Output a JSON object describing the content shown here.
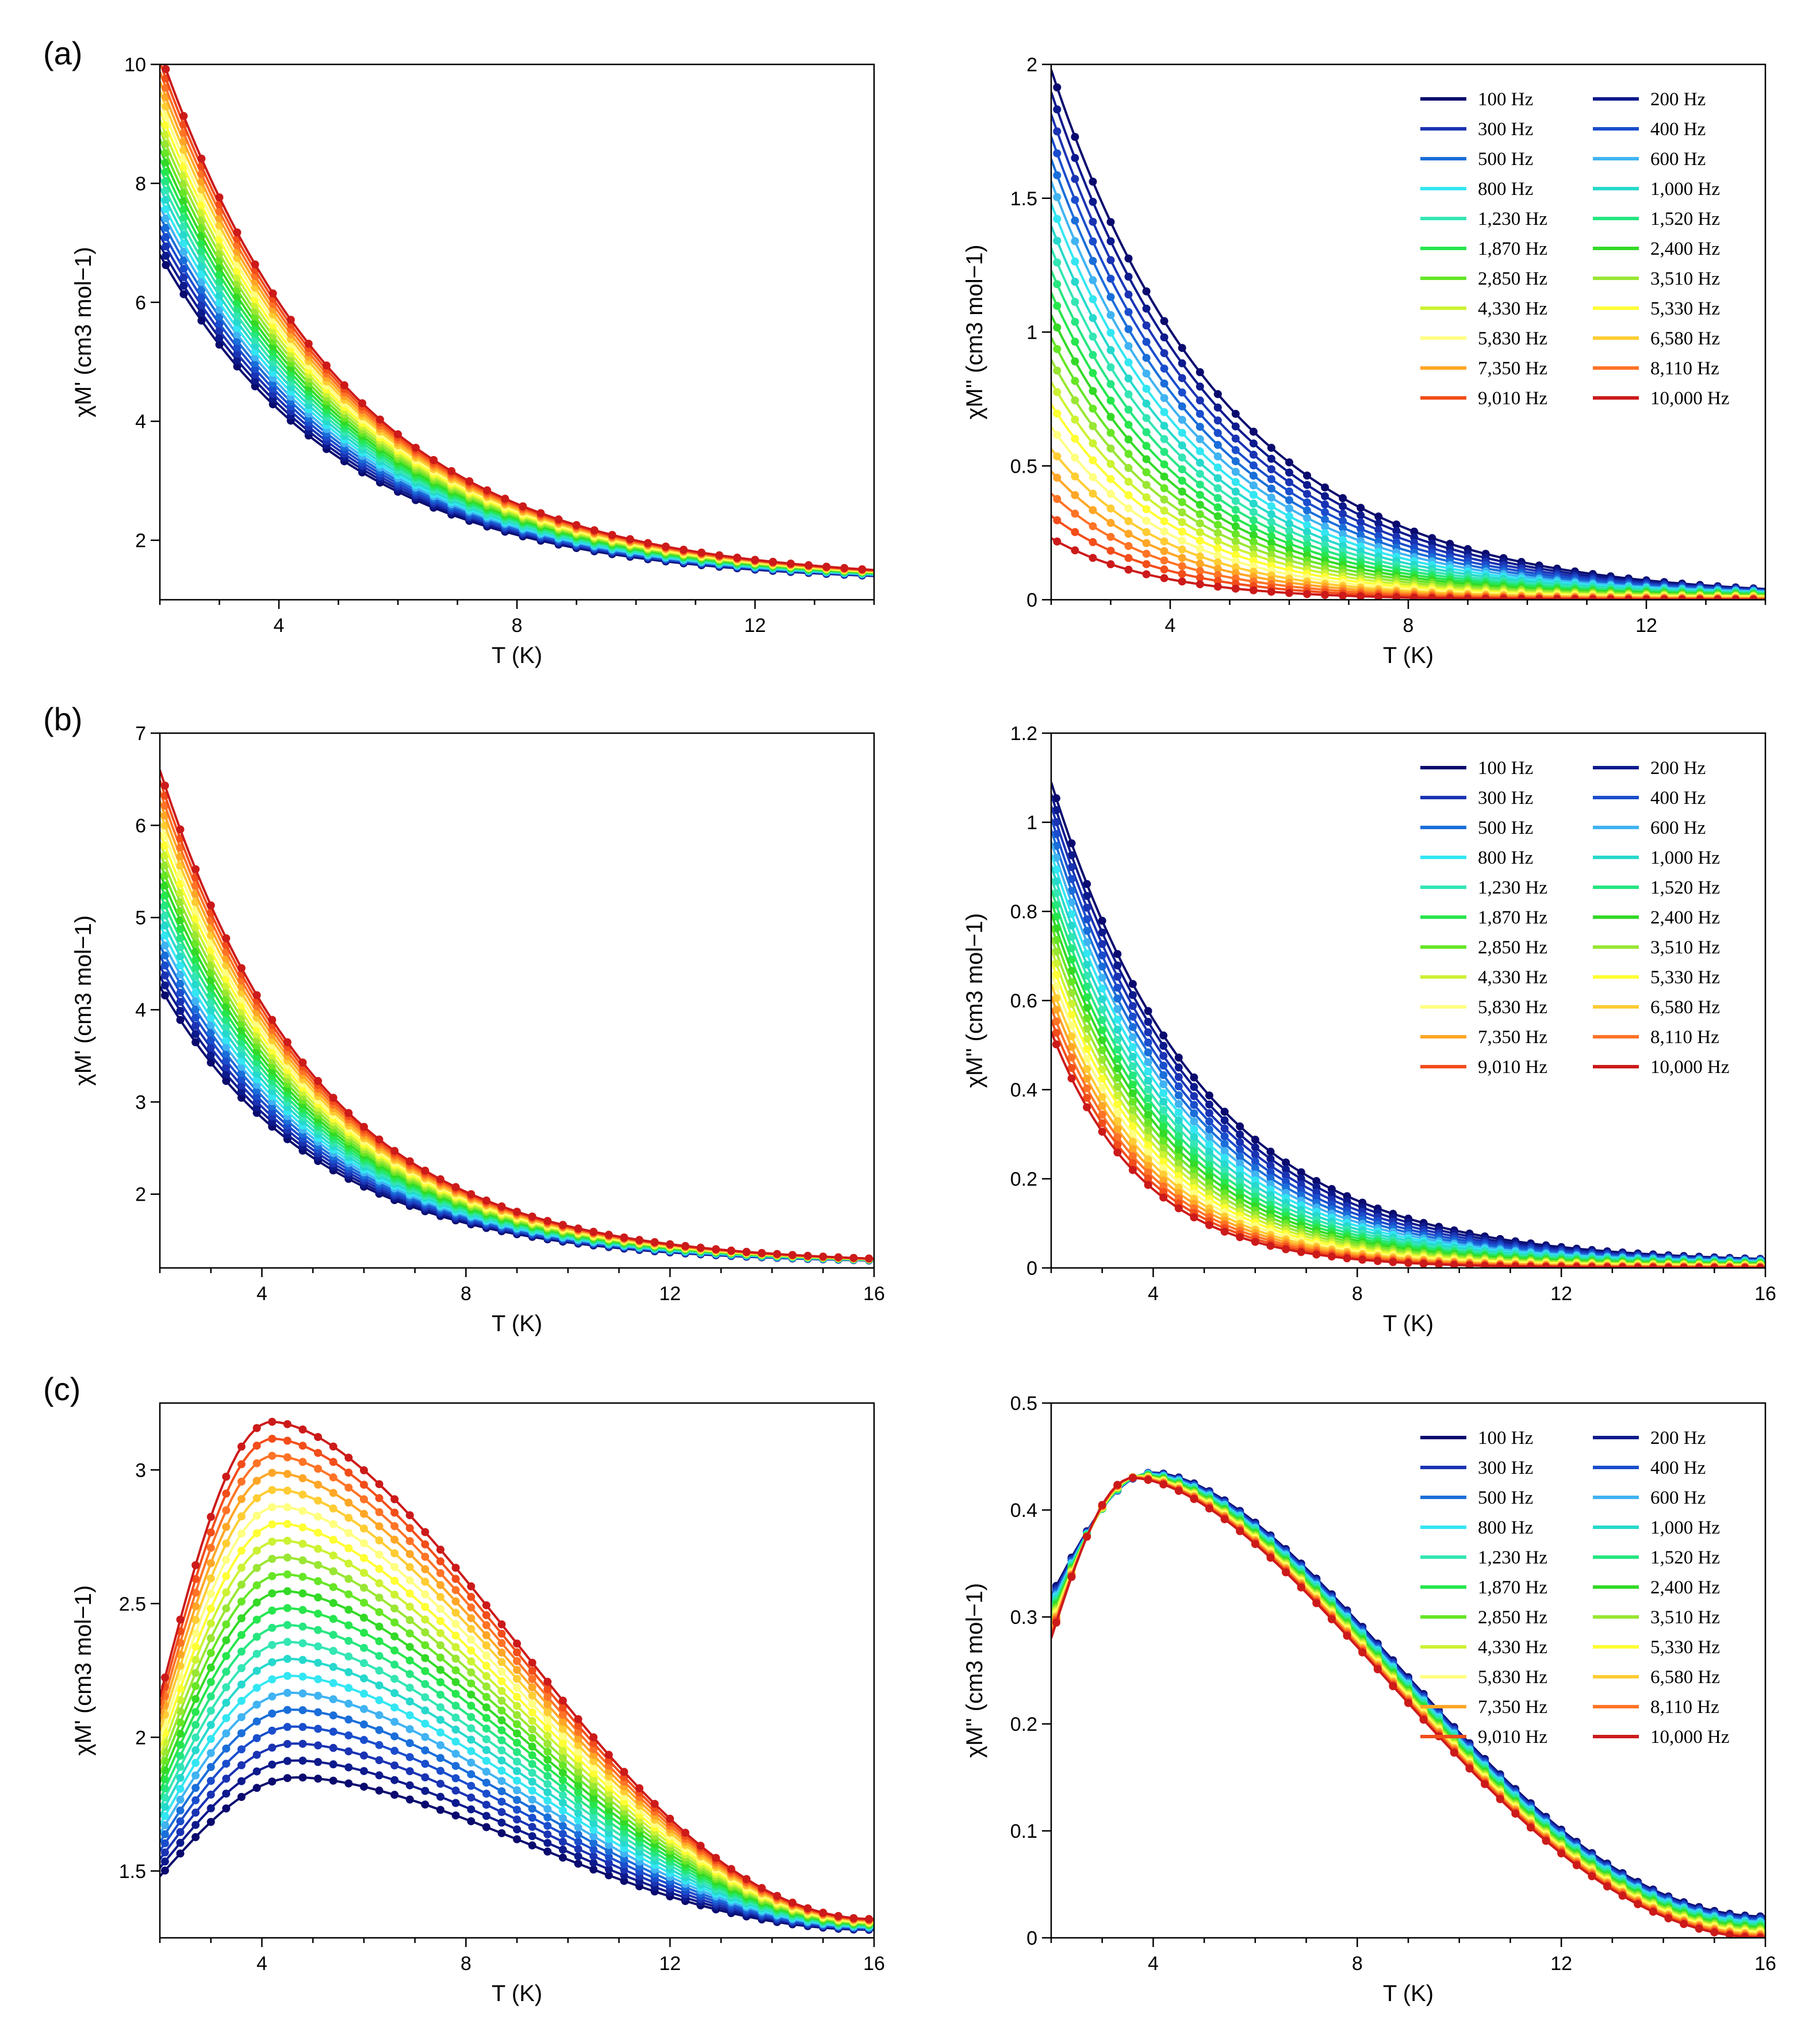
{
  "panel_labels": [
    "(a)",
    "(b)",
    "(c)"
  ],
  "frequencies": [
    "100 Hz",
    "200 Hz",
    "300 Hz",
    "400 Hz",
    "500 Hz",
    "600 Hz",
    "800 Hz",
    "1,000 Hz",
    "1,230 Hz",
    "1,520 Hz",
    "1,870 Hz",
    "2,400 Hz",
    "2,850 Hz",
    "3,510 Hz",
    "4,330 Hz",
    "5,330 Hz",
    "5,830 Hz",
    "6,580 Hz",
    "7,350 Hz",
    "8,110 Hz",
    "9,010 Hz",
    "10,000 Hz"
  ],
  "colors": [
    "#0a0a6e",
    "#0d1a8c",
    "#1a33b3",
    "#1a4dcc",
    "#1a6ed9",
    "#40b3f2",
    "#33e6f2",
    "#26d9cc",
    "#33e6b3",
    "#26e680",
    "#26e64d",
    "#33d926",
    "#66e626",
    "#99e633",
    "#ccf233",
    "#ffff33",
    "#ffff80",
    "#ffcc33",
    "#ffa626",
    "#ff7326",
    "#f24d1a",
    "#cc1a1a"
  ],
  "chart_data": [
    {
      "id": "a-real",
      "type": "line",
      "panel": "(a)",
      "xlabel": "T (K)",
      "ylabel": "χM' (cm3 mol−1)",
      "xlim": [
        2,
        14
      ],
      "ylim": [
        1,
        10
      ],
      "xticks": [
        "4",
        "8",
        "12"
      ],
      "yticks": [
        "2",
        "4",
        "6",
        "8",
        "10"
      ],
      "note": "Approximate: curves decay from ~6.8 (100 Hz) / ~10.2 (10,000 Hz) at 2 K to ~1.4-1.5 at 14 K",
      "series_low": {
        "name": "100 Hz",
        "T2": 6.8,
        "T14": 1.4
      },
      "series_high": {
        "name": "10,000 Hz",
        "T2": 10.2,
        "T14": 1.5
      }
    },
    {
      "id": "a-imag",
      "type": "line",
      "panel": "(a)",
      "xlabel": "T (K)",
      "ylabel": "χM'' (cm3 mol−1)",
      "xlim": [
        2,
        14
      ],
      "ylim": [
        0,
        2
      ],
      "xticks": [
        "4",
        "8",
        "12"
      ],
      "yticks": [
        "0",
        "0.5",
        "1",
        "1.5",
        "2"
      ],
      "series_low": {
        "name": "100 Hz",
        "T2": 1.98,
        "T14": 0.04
      },
      "series_high": {
        "name": "10,000 Hz",
        "T2": 0.23,
        "T14": 0.0
      }
    },
    {
      "id": "b-real",
      "type": "line",
      "panel": "(b)",
      "xlabel": "T (K)",
      "ylabel": "χM' (cm3 mol−1)",
      "xlim": [
        2,
        16
      ],
      "ylim": [
        1.2,
        7
      ],
      "xticks": [
        "4",
        "8",
        "12",
        "16"
      ],
      "yticks": [
        "2",
        "3",
        "4",
        "5",
        "6",
        "7"
      ],
      "series_low": {
        "name": "100 Hz",
        "T2": 4.25,
        "T16": 1.28
      },
      "series_high": {
        "name": "10,000 Hz",
        "T2": 6.6,
        "T16": 1.3
      }
    },
    {
      "id": "b-imag",
      "type": "line",
      "panel": "(b)",
      "xlabel": "T (K)",
      "ylabel": "χM'' (cm3 mol−1)",
      "xlim": [
        2,
        16
      ],
      "ylim": [
        0,
        1.2
      ],
      "xticks": [
        "4",
        "8",
        "12",
        "16"
      ],
      "yticks": [
        "0",
        "0.2",
        "0.4",
        "0.6",
        "0.8",
        "1",
        "1.2"
      ],
      "series_low": {
        "name": "100 Hz",
        "T2": 1.09,
        "T16": 0.02
      },
      "series_high": {
        "name": "10,000 Hz",
        "T2": 0.53,
        "T16": 0.0
      }
    },
    {
      "id": "c-real",
      "type": "line",
      "panel": "(c)",
      "xlabel": "T (K)",
      "ylabel": "χM' (cm3 mol−1)",
      "xlim": [
        2,
        16
      ],
      "ylim": [
        1.25,
        3.25
      ],
      "xticks": [
        "4",
        "8",
        "12",
        "16"
      ],
      "yticks": [
        "1.5",
        "2",
        "2.5",
        "3"
      ],
      "series_low": {
        "name": "100 Hz",
        "T2": 1.48,
        "peakT": 4.7,
        "peak": 1.85,
        "T16": 1.28
      },
      "series_high": {
        "name": "10,000 Hz",
        "T2": 2.15,
        "peakT": 4.2,
        "peak": 3.18,
        "T16": 1.32
      }
    },
    {
      "id": "c-imag",
      "type": "line",
      "panel": "(c)",
      "xlabel": "T (K)",
      "ylabel": "χM'' (cm3 mol−1)",
      "xlim": [
        2,
        16
      ],
      "ylim": [
        0,
        0.5
      ],
      "xticks": [
        "4",
        "8",
        "12",
        "16"
      ],
      "yticks": [
        "0",
        "0.1",
        "0.2",
        "0.3",
        "0.4",
        "0.5"
      ],
      "series_low": {
        "name": "100 Hz",
        "T2": 0.32,
        "peakT": 4.0,
        "peak": 0.435,
        "T16": 0.02
      },
      "series_high": {
        "name": "10,000 Hz",
        "T2": 0.28,
        "peakT": 3.6,
        "peak": 0.43,
        "T16": 0.0
      }
    }
  ]
}
